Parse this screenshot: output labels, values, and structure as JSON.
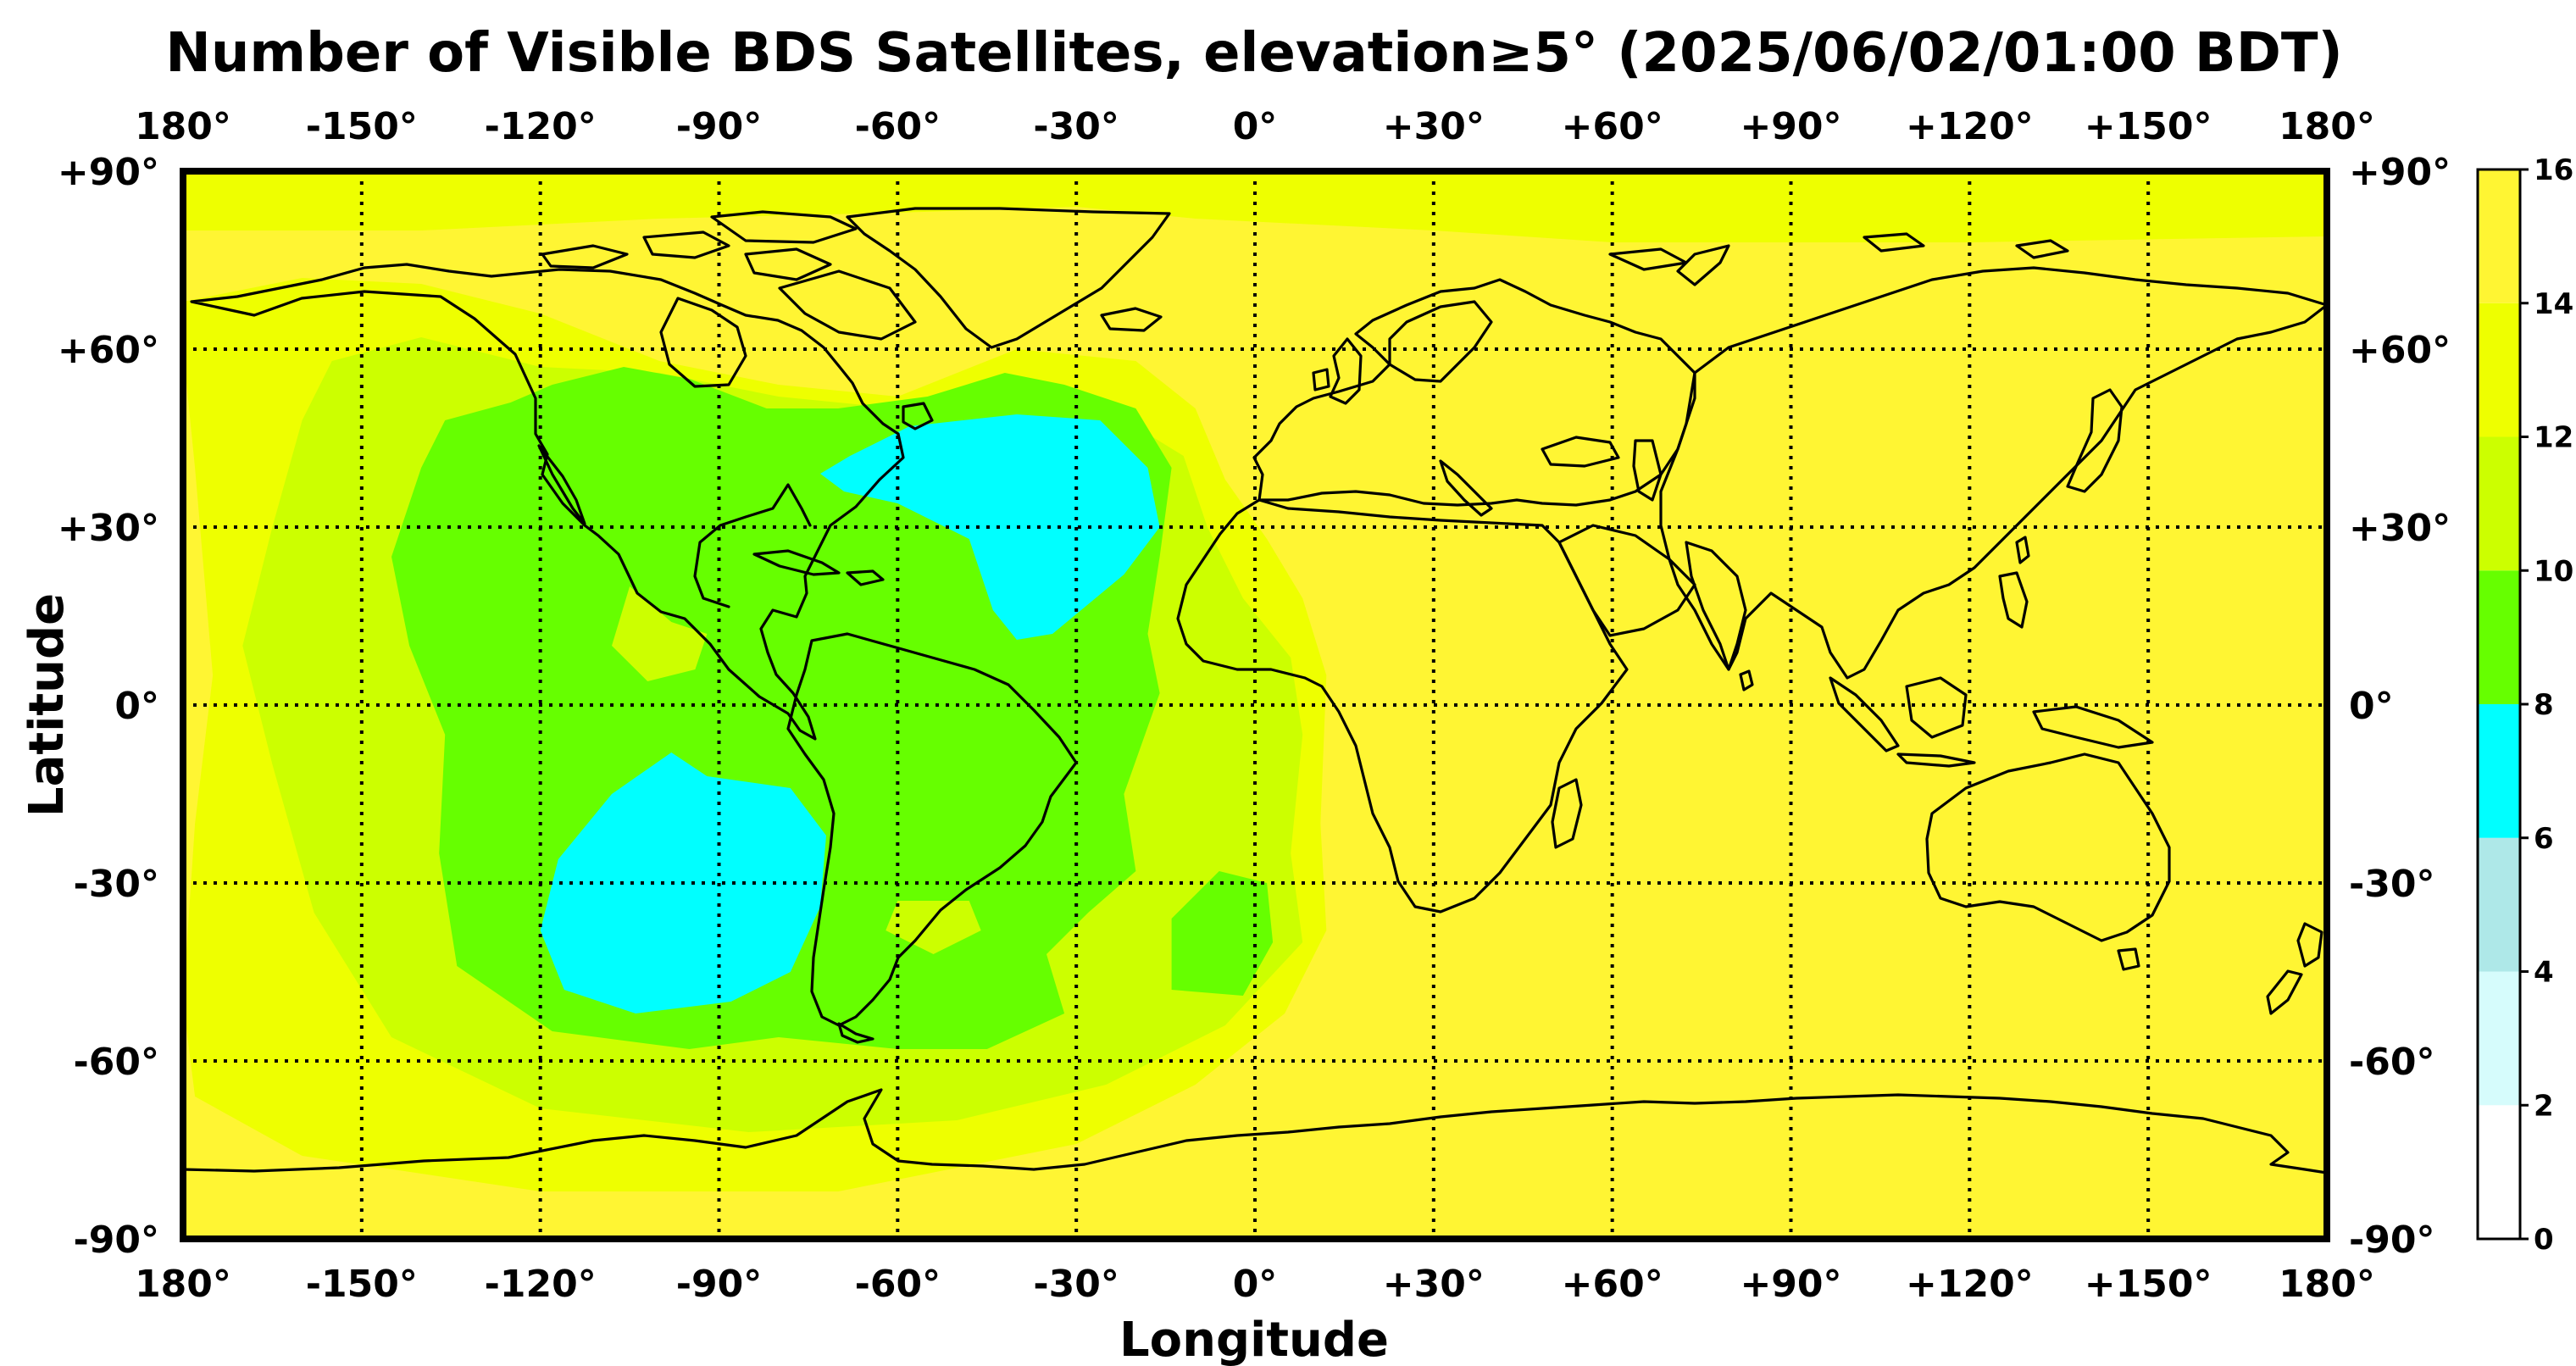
{
  "title": "Number of Visible BDS Satellites, elevation≥5° (2025/06/02/01:00 BDT)",
  "xlabel": "Longitude",
  "ylabel": "Latitude",
  "colors": {
    "frame": "#000000",
    "level_0_2": "#ffffff",
    "level_2_4": "#d6fcfc",
    "level_4_6": "#aee8e8",
    "level_6_8": "#00ffff",
    "level_8_10": "#66ff00",
    "level_10_12": "#ccff00",
    "level_12_14": "#eeff00",
    "level_14_16": "#fff533"
  },
  "chart_data": {
    "type": "heatmap",
    "title": "Number of Visible BDS Satellites, elevation≥5° (2025/06/02/01:00 BDT)",
    "xlabel": "Longitude",
    "ylabel": "Latitude",
    "xlim": [
      -180,
      180
    ],
    "ylim": [
      -90,
      90
    ],
    "x_ticks": [
      -180,
      -150,
      -120,
      -90,
      -60,
      -30,
      0,
      30,
      60,
      90,
      120,
      150,
      180
    ],
    "x_tick_labels": [
      "180°",
      "-150°",
      "-120°",
      "-90°",
      "-60°",
      "-30°",
      "0°",
      "+30°",
      "+60°",
      "+90°",
      "+120°",
      "+150°",
      "180°"
    ],
    "y_ticks": [
      90,
      60,
      30,
      0,
      -30,
      -60,
      -90
    ],
    "y_tick_labels": [
      "+90°",
      "+60°",
      "+30°",
      "0°",
      "-30°",
      "-60°",
      "-90°"
    ],
    "grid": true,
    "colorbar": {
      "levels": [
        0,
        2,
        4,
        6,
        8,
        10,
        12,
        14,
        16
      ],
      "labels": [
        "0",
        "2",
        "4",
        "6",
        "8",
        "10",
        "12",
        "14",
        "16"
      ],
      "colors": [
        "#ffffff",
        "#d6fcfc",
        "#aee8e8",
        "#00ffff",
        "#66ff00",
        "#ccff00",
        "#eeff00",
        "#fff533"
      ],
      "placement": "right"
    },
    "background_value": 15,
    "regions": [
      {
        "value": 13,
        "polygon": [
          [
            -180,
            90
          ],
          [
            180,
            90
          ],
          [
            180,
            79
          ],
          [
            120,
            78
          ],
          [
            60,
            78
          ],
          [
            30,
            80
          ],
          [
            -10,
            82
          ],
          [
            -30,
            84
          ],
          [
            -60,
            83
          ],
          [
            -100,
            82
          ],
          [
            -140,
            80
          ],
          [
            -180,
            80
          ]
        ]
      },
      {
        "value": 13,
        "polygon": [
          [
            -180,
            68
          ],
          [
            -160,
            72
          ],
          [
            -140,
            71
          ],
          [
            -120,
            66
          ],
          [
            -100,
            58
          ],
          [
            -80,
            54
          ],
          [
            -60,
            52
          ],
          [
            -40,
            60
          ],
          [
            -20,
            58
          ],
          [
            -10,
            50
          ],
          [
            -5,
            38
          ],
          [
            2,
            28
          ],
          [
            8,
            18
          ],
          [
            12,
            5
          ],
          [
            11,
            -20
          ],
          [
            12,
            -38
          ],
          [
            5,
            -52
          ],
          [
            -10,
            -64
          ],
          [
            -30,
            -74
          ],
          [
            -70,
            -82
          ],
          [
            -120,
            -82
          ],
          [
            -160,
            -76
          ],
          [
            -178,
            -66
          ],
          [
            -180,
            -50
          ],
          [
            -178,
            -20
          ],
          [
            -175,
            5
          ],
          [
            -178,
            40
          ],
          [
            -180,
            60
          ]
        ]
      },
      {
        "value": 11,
        "polygon": [
          [
            -155,
            58
          ],
          [
            -140,
            62
          ],
          [
            -120,
            57
          ],
          [
            -100,
            56
          ],
          [
            -80,
            52
          ],
          [
            -60,
            50
          ],
          [
            -40,
            55
          ],
          [
            -25,
            50
          ],
          [
            -12,
            42
          ],
          [
            -8,
            30
          ],
          [
            -2,
            18
          ],
          [
            6,
            8
          ],
          [
            8,
            -5
          ],
          [
            6,
            -25
          ],
          [
            8,
            -40
          ],
          [
            -5,
            -54
          ],
          [
            -25,
            -64
          ],
          [
            -50,
            -70
          ],
          [
            -85,
            -72
          ],
          [
            -120,
            -68
          ],
          [
            -145,
            -56
          ],
          [
            -158,
            -35
          ],
          [
            -165,
            -10
          ],
          [
            -170,
            10
          ],
          [
            -165,
            30
          ],
          [
            -160,
            48
          ]
        ]
      },
      {
        "value": 9,
        "polygon": [
          [
            -136,
            48
          ],
          [
            -125,
            51
          ],
          [
            -118,
            54
          ],
          [
            -106,
            57
          ],
          [
            -95,
            55
          ],
          [
            -82,
            50
          ],
          [
            -70,
            50
          ],
          [
            -55,
            52
          ],
          [
            -42,
            56
          ],
          [
            -32,
            54
          ],
          [
            -20,
            50
          ],
          [
            -14,
            40
          ],
          [
            -16,
            25
          ],
          [
            -18,
            12
          ],
          [
            -16,
            2
          ],
          [
            -22,
            -15
          ],
          [
            -20,
            -28
          ],
          [
            -28,
            -35
          ],
          [
            -35,
            -42
          ],
          [
            -32,
            -52
          ],
          [
            -45,
            -58
          ],
          [
            -60,
            -58
          ],
          [
            -80,
            -56
          ],
          [
            -95,
            -58
          ],
          [
            -118,
            -55
          ],
          [
            -134,
            -44
          ],
          [
            -137,
            -25
          ],
          [
            -136,
            -5
          ],
          [
            -142,
            10
          ],
          [
            -145,
            25
          ],
          [
            -140,
            40
          ]
        ]
      },
      {
        "value": 9,
        "polygon": [
          [
            -6,
            -28
          ],
          [
            2,
            -30
          ],
          [
            3,
            -40
          ],
          [
            -2,
            -49
          ],
          [
            -14,
            -48
          ],
          [
            -14,
            -36
          ]
        ]
      },
      {
        "value": 11,
        "polygon": [
          [
            -60,
            -33
          ],
          [
            -48,
            -33
          ],
          [
            -46,
            -38
          ],
          [
            -54,
            -42
          ],
          [
            -62,
            -38
          ]
        ]
      },
      {
        "value": 11,
        "polygon": [
          [
            -105,
            20
          ],
          [
            -98,
            14
          ],
          [
            -92,
            12
          ],
          [
            -94,
            6
          ],
          [
            -102,
            4
          ],
          [
            -108,
            10
          ]
        ]
      },
      {
        "value": 7,
        "polygon": [
          [
            -68,
            42
          ],
          [
            -58,
            47
          ],
          [
            -40,
            49
          ],
          [
            -26,
            48
          ],
          [
            -18,
            40
          ],
          [
            -16,
            30
          ],
          [
            -22,
            22
          ],
          [
            -34,
            12
          ],
          [
            -40,
            11
          ],
          [
            -44,
            16
          ],
          [
            -48,
            28
          ],
          [
            -60,
            34
          ],
          [
            -69,
            36
          ],
          [
            -73,
            39
          ]
        ]
      },
      {
        "value": 7,
        "polygon": [
          [
            -117,
            -26
          ],
          [
            -108,
            -15
          ],
          [
            -98,
            -8
          ],
          [
            -92,
            -12
          ],
          [
            -78,
            -14
          ],
          [
            -72,
            -22
          ],
          [
            -73,
            -34
          ],
          [
            -78,
            -45
          ],
          [
            -88,
            -50
          ],
          [
            -104,
            -52
          ],
          [
            -116,
            -48
          ],
          [
            -120,
            -38
          ]
        ]
      }
    ]
  }
}
